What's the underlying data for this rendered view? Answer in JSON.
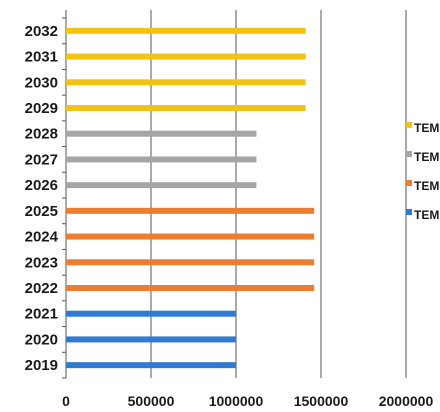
{
  "chart_data": {
    "type": "bar",
    "orientation": "horizontal",
    "categories": [
      "2019",
      "2020",
      "2021",
      "2022",
      "2023",
      "2024",
      "2025",
      "2026",
      "2027",
      "2028",
      "2029",
      "2030",
      "2031",
      "2032"
    ],
    "series": [
      {
        "name": "TEM",
        "color": "#2e7bd1",
        "values": [
          1000000,
          1000000,
          1000000,
          null,
          null,
          null,
          null,
          null,
          null,
          null,
          null,
          null,
          null,
          null
        ]
      },
      {
        "name": "TEM",
        "color": "#ed7d31",
        "values": [
          null,
          null,
          null,
          1460000,
          1460000,
          1460000,
          1460000,
          null,
          null,
          null,
          null,
          null,
          null,
          null
        ]
      },
      {
        "name": "TEM",
        "color": "#a5a5a5",
        "values": [
          null,
          null,
          null,
          null,
          null,
          null,
          null,
          1120000,
          1120000,
          1120000,
          null,
          null,
          null,
          null
        ]
      },
      {
        "name": "TEM",
        "color": "#f2c314",
        "values": [
          null,
          null,
          null,
          null,
          null,
          null,
          null,
          null,
          null,
          null,
          1410000,
          1410000,
          1410000,
          1410000
        ]
      }
    ],
    "xlim": [
      0,
      2000000
    ],
    "xticks": [
      "0",
      "500000",
      "1000000",
      "1500000",
      "2000000"
    ],
    "grid": true,
    "legend_position": "right",
    "legend_order": [
      3,
      2,
      1,
      0
    ]
  }
}
